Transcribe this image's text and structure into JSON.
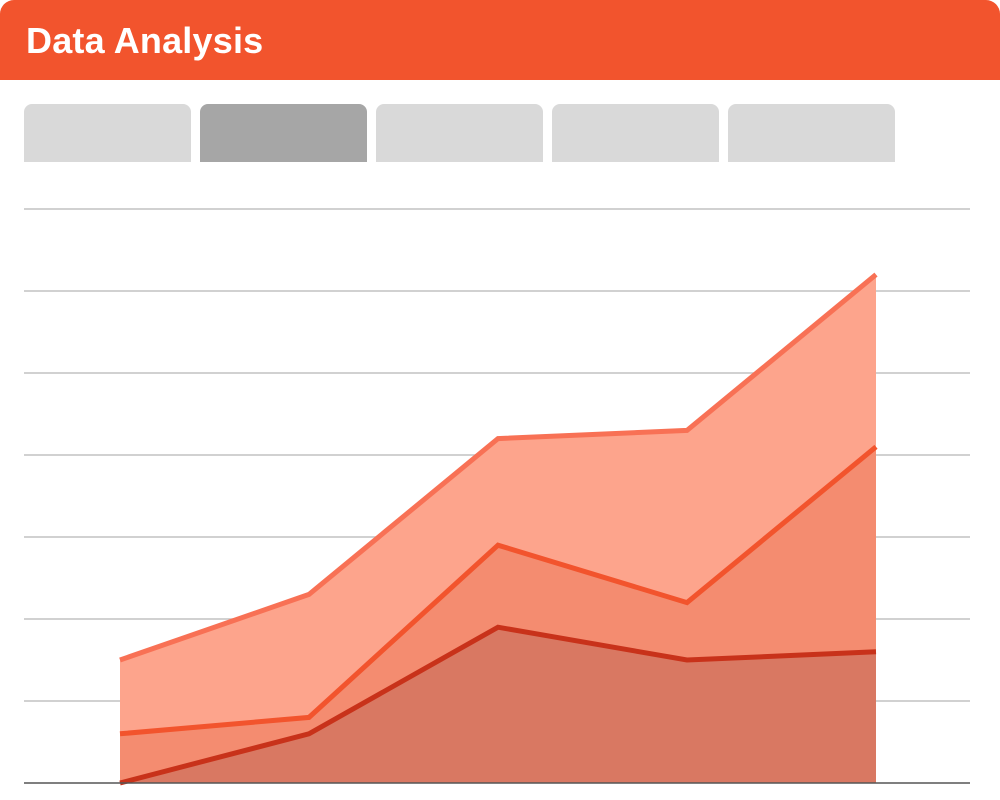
{
  "header": {
    "title": "Data Analysis",
    "color": "#f2542d"
  },
  "tabs": [
    {
      "label": "",
      "active": false
    },
    {
      "label": "",
      "active": true
    },
    {
      "label": "",
      "active": false
    },
    {
      "label": "",
      "active": false
    },
    {
      "label": "",
      "active": false
    }
  ],
  "chart_data": {
    "type": "area",
    "x": [
      1,
      2,
      3,
      4,
      5
    ],
    "ylim": [
      0,
      7
    ],
    "grid": true,
    "gridline_values": [
      0,
      1,
      2,
      3,
      4,
      5,
      6,
      7
    ],
    "series": [
      {
        "values": [
          0.0,
          0.6,
          1.9,
          1.5,
          1.6
        ],
        "fill": "#d97862",
        "stroke": "#c8321a"
      },
      {
        "values": [
          0.6,
          0.8,
          2.9,
          2.2,
          4.1
        ],
        "fill": "#f48c70",
        "stroke": "#f2542d"
      },
      {
        "values": [
          1.5,
          2.3,
          4.2,
          4.3,
          6.2
        ],
        "fill": "#fda48c",
        "stroke": "#f87155"
      }
    ]
  }
}
